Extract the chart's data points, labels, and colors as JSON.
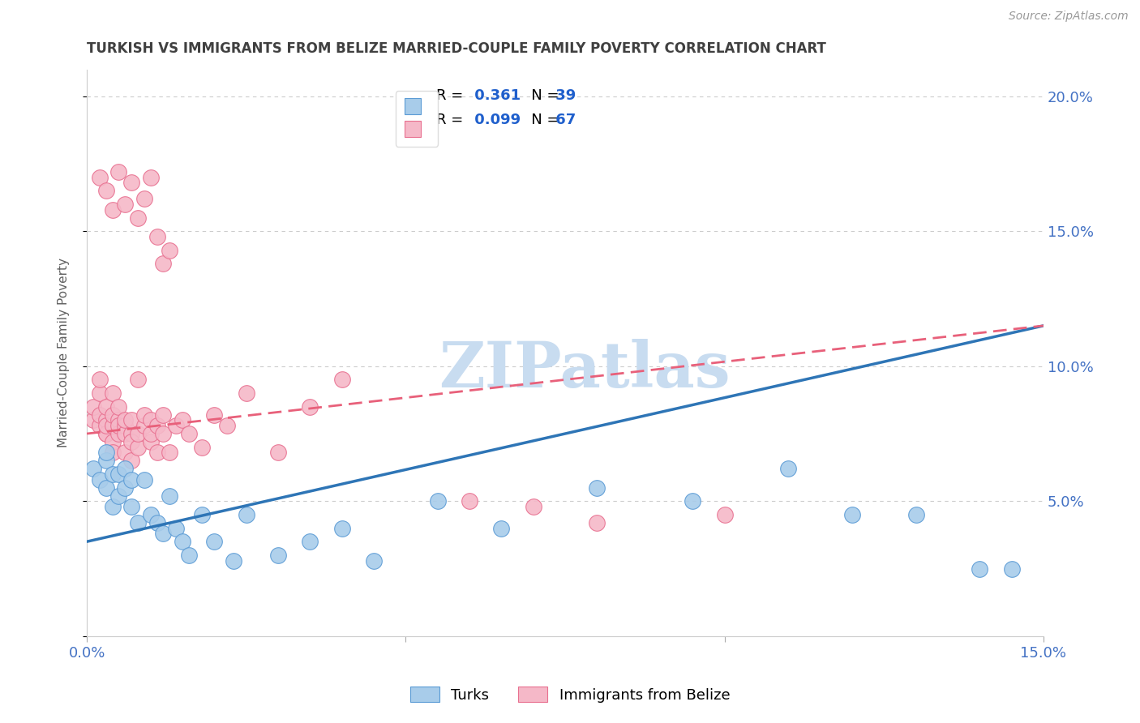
{
  "title": "TURKISH VS IMMIGRANTS FROM BELIZE MARRIED-COUPLE FAMILY POVERTY CORRELATION CHART",
  "source_text": "Source: ZipAtlas.com",
  "ylabel": "Married-Couple Family Poverty",
  "xmin": 0.0,
  "xmax": 0.15,
  "ymin": 0.0,
  "ymax": 0.21,
  "yticks": [
    0.0,
    0.05,
    0.1,
    0.15,
    0.2
  ],
  "ytick_labels": [
    "",
    "5.0%",
    "10.0%",
    "15.0%",
    "20.0%"
  ],
  "xticks": [
    0.0,
    0.05,
    0.1,
    0.15
  ],
  "xtick_labels": [
    "0.0%",
    "",
    "",
    "15.0%"
  ],
  "blue_R": 0.361,
  "blue_N": 39,
  "pink_R": 0.099,
  "pink_N": 67,
  "blue_label": "Turks",
  "pink_label": "Immigrants from Belize",
  "blue_color": "#A8CCEA",
  "pink_color": "#F5B8C8",
  "blue_edge_color": "#5B9BD5",
  "pink_edge_color": "#E87090",
  "blue_line_color": "#2E75B6",
  "pink_line_color": "#E8607A",
  "watermark": "ZIPatlas",
  "watermark_color": "#C8DCF0",
  "title_color": "#404040",
  "axis_label_color": "#606060",
  "tick_color": "#4472C4",
  "legend_val_color": "#1F5FCC",
  "grid_color": "#CCCCCC",
  "blue_x": [
    0.001,
    0.002,
    0.003,
    0.003,
    0.003,
    0.004,
    0.004,
    0.005,
    0.005,
    0.006,
    0.006,
    0.007,
    0.007,
    0.008,
    0.009,
    0.01,
    0.011,
    0.012,
    0.013,
    0.014,
    0.015,
    0.016,
    0.018,
    0.02,
    0.023,
    0.025,
    0.03,
    0.035,
    0.04,
    0.045,
    0.055,
    0.065,
    0.08,
    0.095,
    0.11,
    0.12,
    0.13,
    0.14,
    0.145
  ],
  "blue_y": [
    0.062,
    0.058,
    0.055,
    0.065,
    0.068,
    0.048,
    0.06,
    0.052,
    0.06,
    0.055,
    0.062,
    0.048,
    0.058,
    0.042,
    0.058,
    0.045,
    0.042,
    0.038,
    0.052,
    0.04,
    0.035,
    0.03,
    0.045,
    0.035,
    0.028,
    0.045,
    0.03,
    0.035,
    0.04,
    0.028,
    0.05,
    0.04,
    0.055,
    0.05,
    0.062,
    0.045,
    0.045,
    0.025,
    0.025
  ],
  "pink_x": [
    0.001,
    0.001,
    0.002,
    0.002,
    0.002,
    0.002,
    0.003,
    0.003,
    0.003,
    0.003,
    0.003,
    0.004,
    0.004,
    0.004,
    0.004,
    0.004,
    0.005,
    0.005,
    0.005,
    0.005,
    0.006,
    0.006,
    0.006,
    0.006,
    0.007,
    0.007,
    0.007,
    0.007,
    0.008,
    0.008,
    0.008,
    0.009,
    0.009,
    0.01,
    0.01,
    0.01,
    0.011,
    0.011,
    0.012,
    0.012,
    0.013,
    0.014,
    0.015,
    0.016,
    0.018,
    0.02,
    0.022,
    0.025,
    0.03,
    0.035,
    0.002,
    0.003,
    0.004,
    0.005,
    0.006,
    0.007,
    0.008,
    0.009,
    0.01,
    0.011,
    0.012,
    0.013,
    0.04,
    0.06,
    0.07,
    0.08,
    0.1
  ],
  "pink_y": [
    0.08,
    0.085,
    0.078,
    0.082,
    0.09,
    0.095,
    0.075,
    0.08,
    0.085,
    0.075,
    0.078,
    0.072,
    0.078,
    0.082,
    0.068,
    0.09,
    0.08,
    0.085,
    0.075,
    0.078,
    0.078,
    0.068,
    0.075,
    0.08,
    0.075,
    0.08,
    0.065,
    0.072,
    0.095,
    0.07,
    0.075,
    0.078,
    0.082,
    0.08,
    0.072,
    0.075,
    0.068,
    0.078,
    0.082,
    0.075,
    0.068,
    0.078,
    0.08,
    0.075,
    0.07,
    0.082,
    0.078,
    0.09,
    0.068,
    0.085,
    0.17,
    0.165,
    0.158,
    0.172,
    0.16,
    0.168,
    0.155,
    0.162,
    0.17,
    0.148,
    0.138,
    0.143,
    0.095,
    0.05,
    0.048,
    0.042,
    0.045
  ],
  "blue_trend_x0": 0.0,
  "blue_trend_y0": 0.035,
  "blue_trend_x1": 0.15,
  "blue_trend_y1": 0.115,
  "pink_trend_x0": 0.0,
  "pink_trend_y0": 0.075,
  "pink_trend_x1": 0.15,
  "pink_trend_y1": 0.115
}
